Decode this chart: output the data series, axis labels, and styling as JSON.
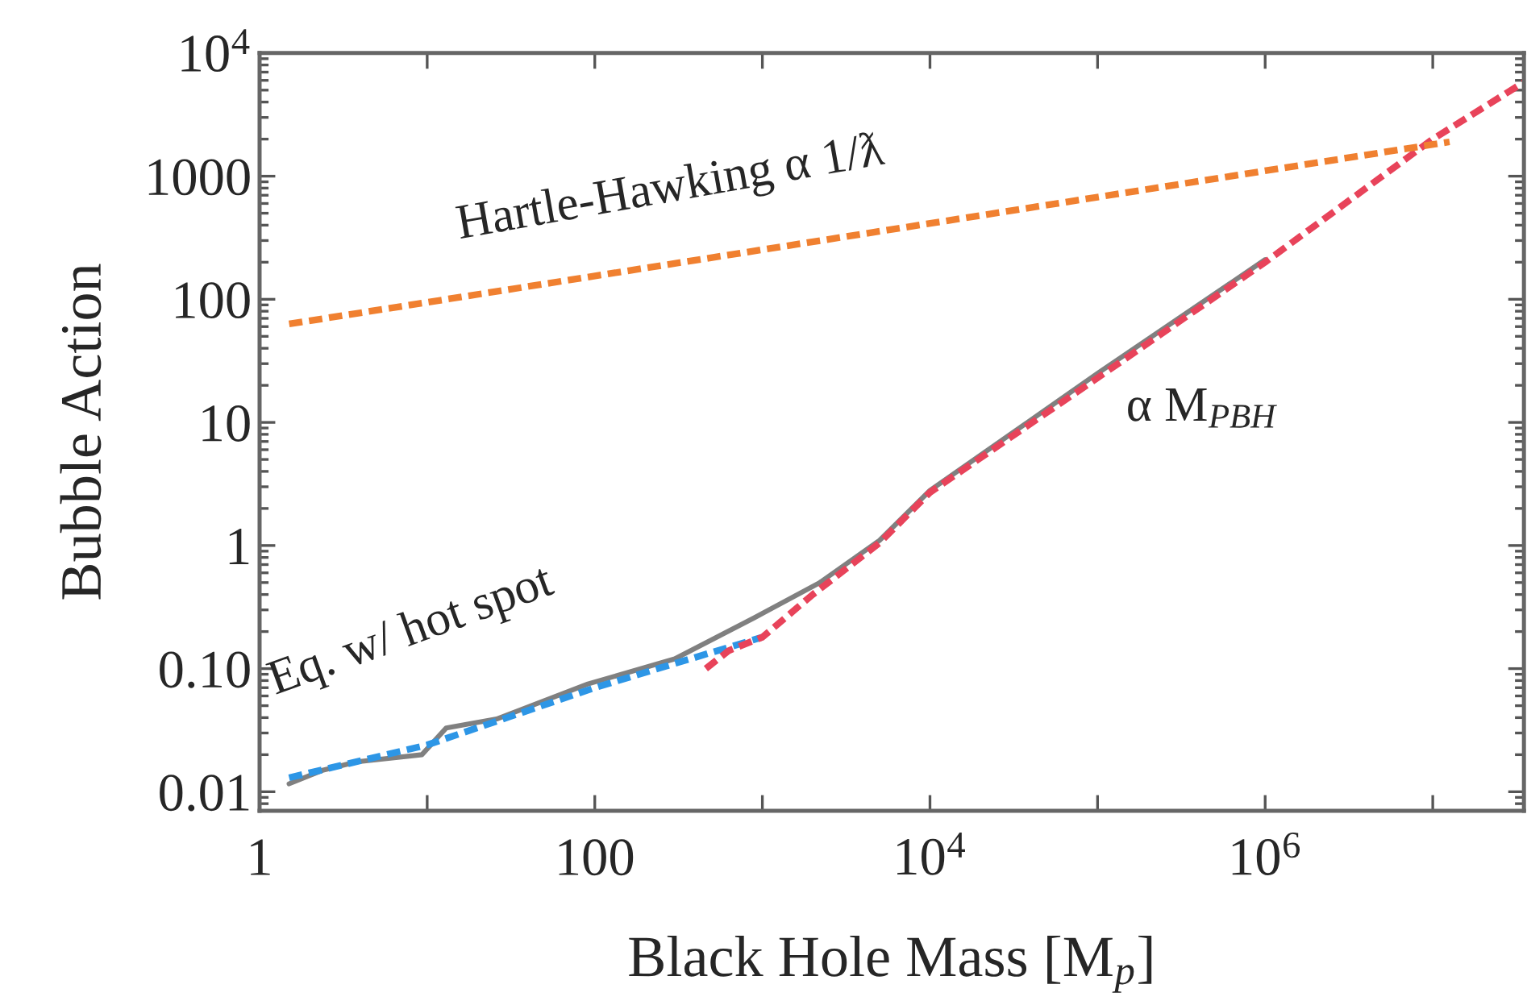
{
  "chart_data": {
    "type": "line",
    "xlabel": "Black Hole Mass [M$_{p}$]",
    "ylabel": "Bubble Action",
    "log": "xy",
    "xlim": [
      1,
      35000000
    ],
    "ylim": [
      0.007,
      10000
    ],
    "xticks": [
      1,
      {
        "value": 10,
        "label": null
      },
      100,
      {
        "value": 1000,
        "label": null
      },
      {
        "value": 10000,
        "label": "10$^{4}$"
      },
      {
        "value": 100000,
        "label": null
      },
      {
        "value": 1000000,
        "label": "10$^{6}$"
      },
      {
        "value": 10000000,
        "label": null
      }
    ],
    "yticks": [
      0.01,
      {
        "value": 0.1,
        "label": "0.10"
      },
      1,
      10,
      100,
      1000,
      {
        "value": 10000,
        "label": "10$^{4}$"
      }
    ],
    "grid": false,
    "legend": false,
    "series": [
      {
        "color": "#808080",
        "line_style": "solid",
        "x": [
          1.5,
          2.4,
          3.8,
          9.3,
          13,
          26,
          91,
          300,
          900,
          2200,
          5000,
          10000,
          100000,
          1000000
        ],
        "values": [
          0.0116,
          0.015,
          0.0175,
          0.02,
          0.033,
          0.039,
          0.075,
          0.12,
          0.26,
          0.5,
          1.1,
          2.8,
          25,
          210
        ]
      },
      {
        "color": "#2d96e6",
        "line_style": "dashed",
        "x": [
          1.5,
          10,
          30,
          100,
          300,
          1000
        ],
        "values": [
          0.013,
          0.024,
          0.04,
          0.07,
          0.11,
          0.18
        ]
      },
      {
        "color": "#e8435a",
        "line_style": "dashed",
        "x": [
          460,
          630,
          1000,
          2000,
          5000,
          10000,
          100000,
          1000000,
          10000000,
          35000000
        ],
        "values": [
          0.1,
          0.14,
          0.18,
          0.4,
          1.05,
          2.7,
          23,
          200,
          2000,
          5800
        ]
      },
      {
        "color": "#f08030",
        "line_style": "dashed",
        "x": [
          1.5,
          12600000
        ],
        "values": [
          63,
          1900
        ]
      }
    ],
    "annotations": [
      "Hartle-Hawking α 1/ƛ",
      "α M$_{PBH}$",
      "Eq. w/ hot spot"
    ]
  }
}
